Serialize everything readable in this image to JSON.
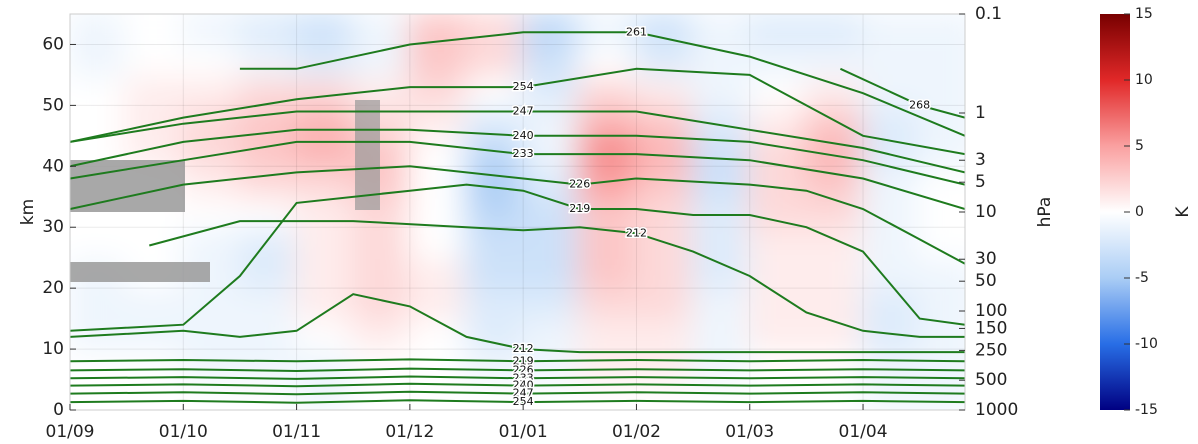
{
  "chart_data": {
    "type": "contour",
    "ylabel": "km",
    "y2label": "hPa",
    "xlim": [
      0,
      7.9
    ],
    "xticks": [
      {
        "value": 0,
        "label": "01/09"
      },
      {
        "value": 1,
        "label": "01/10"
      },
      {
        "value": 2,
        "label": "01/11"
      },
      {
        "value": 3,
        "label": "01/12"
      },
      {
        "value": 4,
        "label": "01/01"
      },
      {
        "value": 5,
        "label": "01/02"
      },
      {
        "value": 6,
        "label": "01/03"
      },
      {
        "value": 7,
        "label": "01/04"
      }
    ],
    "ylim": [
      0,
      65
    ],
    "yticks": [
      0,
      10,
      20,
      30,
      40,
      50,
      60
    ],
    "y2lim": [
      1000,
      0.1
    ],
    "y2log": true,
    "y2ticks": [
      0.1,
      1,
      3,
      5,
      10,
      30,
      50,
      100,
      150,
      250,
      500,
      1000
    ],
    "grid": true,
    "contour_color": "#1e7b1e",
    "field": {
      "x": [
        0.25,
        0.75,
        1.25,
        1.75,
        2.25,
        2.75,
        3.25,
        3.75,
        4.25,
        4.75,
        5.25,
        5.75,
        6.25,
        6.75,
        7.25,
        7.75
      ],
      "y": [
        2.5,
        7.5,
        12.5,
        17.5,
        22.5,
        27.5,
        32.5,
        37.5,
        42.5,
        47.5,
        52.5,
        57.5,
        62.5
      ],
      "values": [
        [
          0,
          0,
          -1,
          -1,
          -1,
          0,
          0,
          0,
          0,
          0,
          0,
          -1,
          -1
        ],
        [
          0,
          0,
          -1,
          -1,
          0,
          0,
          0,
          0,
          1,
          1,
          1,
          0,
          0
        ],
        [
          0,
          -1,
          -1,
          -1,
          -1,
          -1,
          0,
          1,
          2,
          2,
          1,
          0,
          -1
        ],
        [
          0,
          -1,
          -1,
          -1,
          -2,
          -2,
          0,
          2,
          3,
          3,
          2,
          -1,
          -2
        ],
        [
          -1,
          -1,
          0,
          1,
          1,
          1,
          1,
          2,
          4,
          4,
          2,
          -2,
          -3
        ],
        [
          0,
          0,
          1,
          2,
          2,
          2,
          2,
          3,
          3,
          2,
          1,
          -1,
          -1
        ],
        [
          0,
          0,
          0,
          1,
          1,
          0,
          0,
          0,
          0,
          1,
          2,
          3,
          3
        ],
        [
          0,
          -1,
          -2,
          -2,
          -3,
          -3,
          -4,
          -5,
          -4,
          -2,
          0,
          2,
          2
        ],
        [
          0,
          -1,
          -1,
          -2,
          -3,
          -3,
          -3,
          -2,
          -1,
          -1,
          -2,
          -3,
          -4
        ],
        [
          0,
          1,
          1,
          2,
          3,
          3,
          3,
          5,
          6,
          4,
          2,
          0,
          -1
        ],
        [
          0,
          1,
          1,
          2,
          2,
          2,
          2,
          3,
          4,
          3,
          1,
          -2,
          -3
        ],
        [
          0,
          -1,
          -1,
          -1,
          -2,
          -2,
          -2,
          -3,
          -3,
          -2,
          -1,
          -1,
          -1
        ],
        [
          0,
          0,
          1,
          1,
          1,
          1,
          2,
          2,
          2,
          1,
          0,
          -1,
          -2
        ],
        [
          0,
          0,
          1,
          1,
          1,
          1,
          2,
          3,
          4,
          3,
          1,
          -1,
          -2
        ],
        [
          -1,
          -1,
          -2,
          -2,
          -1,
          -1,
          -1,
          -1,
          -2,
          -2,
          -1,
          -1,
          -1
        ],
        [
          -1,
          -1,
          -1,
          -1,
          -1,
          0,
          0,
          0,
          -1,
          -1,
          -1,
          -1,
          -1
        ]
      ]
    },
    "contours": [
      {
        "level": 212,
        "x": [
          0.7,
          1.5,
          2.5,
          3.5,
          4,
          4.5,
          5,
          5.5,
          6,
          6.5,
          7,
          7.5,
          7.9
        ],
        "y": [
          27,
          31,
          31,
          30,
          29.5,
          30,
          29,
          26,
          22,
          16,
          13,
          12,
          12
        ]
      },
      {
        "level": 212,
        "x": [
          0,
          1,
          1.5,
          2,
          2.5,
          3,
          3.5,
          4,
          4.5,
          5,
          5.5,
          6,
          6.5,
          7,
          7.9
        ],
        "y": [
          12,
          13,
          12,
          13,
          19,
          17,
          12,
          10,
          9.5,
          9.5,
          9.5,
          9.5,
          9.5,
          9.5,
          9.5
        ]
      },
      {
        "level": 219,
        "x": [
          0,
          1,
          1.5,
          2,
          3,
          3.5,
          4,
          4.5,
          5,
          5.5,
          6,
          6.5,
          7,
          7.5,
          7.9
        ],
        "y": [
          13,
          14,
          22,
          34,
          36,
          37,
          36,
          33,
          33,
          32,
          32,
          30,
          26,
          15,
          14
        ]
      },
      {
        "level": 219,
        "x": [
          0,
          1,
          2,
          3,
          4,
          5,
          6,
          7,
          7.9
        ],
        "y": [
          8,
          8.2,
          8,
          8.3,
          8,
          8.2,
          8,
          8.2,
          8
        ]
      },
      {
        "level": 226,
        "x": [
          0,
          0.5,
          1,
          2,
          3,
          4,
          4.5,
          5,
          6,
          6.5,
          7,
          7.5,
          7.9
        ],
        "y": [
          33,
          35,
          37,
          39,
          40,
          38,
          37,
          38,
          37,
          36,
          33,
          28,
          24
        ]
      },
      {
        "level": 226,
        "x": [
          0,
          1,
          2,
          3,
          4,
          5,
          6,
          7,
          7.9
        ],
        "y": [
          6.5,
          6.7,
          6.4,
          6.8,
          6.5,
          6.7,
          6.5,
          6.7,
          6.5
        ]
      },
      {
        "level": 233,
        "x": [
          0,
          1,
          2,
          3,
          4,
          5,
          6,
          7,
          7.9
        ],
        "y": [
          38,
          41,
          44,
          44,
          42,
          42,
          41,
          38,
          33
        ]
      },
      {
        "level": 233,
        "x": [
          0,
          1,
          2,
          3,
          4,
          5,
          6,
          7,
          7.9
        ],
        "y": [
          5.2,
          5.4,
          5.1,
          5.5,
          5.2,
          5.4,
          5.2,
          5.4,
          5.2
        ]
      },
      {
        "level": 240,
        "x": [
          0,
          1,
          2,
          3,
          4,
          5,
          6,
          7,
          7.9
        ],
        "y": [
          40,
          44,
          46,
          46,
          45,
          45,
          44,
          41,
          37
        ]
      },
      {
        "level": 240,
        "x": [
          0,
          1,
          2,
          3,
          4,
          5,
          6,
          7,
          7.9
        ],
        "y": [
          4,
          4.2,
          3.9,
          4.3,
          4,
          4.2,
          4,
          4.2,
          4
        ]
      },
      {
        "level": 247,
        "x": [
          0,
          1,
          2,
          3,
          4,
          5,
          6,
          7,
          7.9
        ],
        "y": [
          44,
          47,
          49,
          49,
          49,
          49,
          46,
          43,
          39
        ]
      },
      {
        "level": 247,
        "x": [
          0,
          1,
          2,
          3,
          4,
          5,
          6,
          7,
          7.9
        ],
        "y": [
          2.7,
          2.9,
          2.6,
          3,
          2.7,
          2.9,
          2.7,
          2.9,
          2.7
        ]
      },
      {
        "level": 254,
        "x": [
          0,
          0.5,
          1,
          2,
          3,
          4,
          5,
          6,
          7,
          7.9
        ],
        "y": [
          44,
          46,
          48,
          51,
          53,
          53,
          56,
          55,
          45,
          42
        ]
      },
      {
        "level": 254,
        "x": [
          0,
          1,
          2,
          3,
          4,
          5,
          6,
          7,
          7.9
        ],
        "y": [
          1.3,
          1.5,
          1.2,
          1.6,
          1.3,
          1.5,
          1.3,
          1.5,
          1.3
        ]
      },
      {
        "level": 261,
        "x": [
          1.5,
          2,
          3,
          4,
          5,
          6,
          7,
          7.9
        ],
        "y": [
          56,
          56,
          60,
          62,
          62,
          58,
          52,
          45
        ]
      },
      {
        "level": 268,
        "x": [
          6.8,
          7.5,
          7.9
        ],
        "y": [
          56,
          50,
          48
        ]
      }
    ],
    "colorbar": {
      "label": "K",
      "lim": [
        -15,
        15
      ],
      "ticks": [
        -15,
        -10,
        -5,
        0,
        5,
        10,
        15
      ]
    }
  }
}
